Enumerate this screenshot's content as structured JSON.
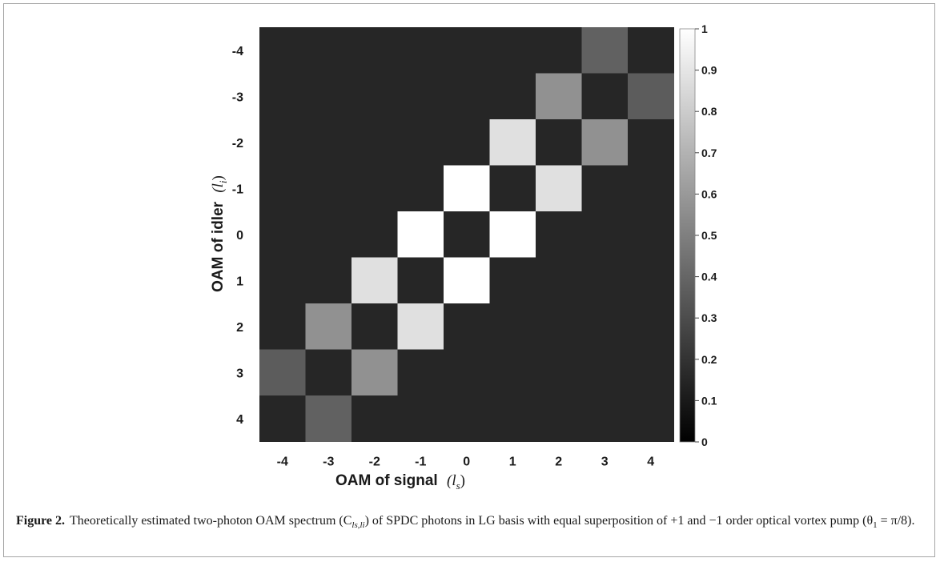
{
  "chart_data": {
    "type": "heatmap",
    "x_label_text": "OAM of signal",
    "x_label_math": "(l",
    "x_label_sub": "s",
    "x_label_close": ")",
    "y_label_text": "OAM of idler",
    "y_label_math": "(l",
    "y_label_sub": "i",
    "y_label_close": ")",
    "x_categories": [
      "-4",
      "-3",
      "-2",
      "-1",
      "0",
      "1",
      "2",
      "3",
      "4"
    ],
    "y_categories": [
      "-4",
      "-3",
      "-2",
      "-1",
      "0",
      "1",
      "2",
      "3",
      "4"
    ],
    "z": [
      [
        0.15,
        0.15,
        0.15,
        0.15,
        0.15,
        0.15,
        0.15,
        0.38,
        0.15
      ],
      [
        0.15,
        0.15,
        0.15,
        0.15,
        0.15,
        0.15,
        0.57,
        0.15,
        0.36
      ],
      [
        0.15,
        0.15,
        0.15,
        0.15,
        0.15,
        0.88,
        0.15,
        0.57,
        0.15
      ],
      [
        0.15,
        0.15,
        0.15,
        0.15,
        1.0,
        0.15,
        0.88,
        0.15,
        0.15
      ],
      [
        0.15,
        0.15,
        0.15,
        1.0,
        0.15,
        1.0,
        0.15,
        0.15,
        0.15
      ],
      [
        0.15,
        0.15,
        0.88,
        0.15,
        1.0,
        0.15,
        0.15,
        0.15,
        0.15
      ],
      [
        0.15,
        0.57,
        0.15,
        0.88,
        0.15,
        0.15,
        0.15,
        0.15,
        0.15
      ],
      [
        0.36,
        0.15,
        0.57,
        0.15,
        0.15,
        0.15,
        0.15,
        0.15,
        0.15
      ],
      [
        0.15,
        0.38,
        0.15,
        0.15,
        0.15,
        0.15,
        0.15,
        0.15,
        0.15
      ]
    ],
    "colorbar": {
      "min": 0,
      "max": 1,
      "ticks": [
        "0",
        "0.1",
        "0.2",
        "0.3",
        "0.4",
        "0.5",
        "0.6",
        "0.7",
        "0.8",
        "0.9",
        "1"
      ],
      "colormap": "gray",
      "low_color": "#000000",
      "high_color": "#ffffff"
    }
  },
  "caption": {
    "label": "Figure 2.",
    "text": "Theoretically estimated two-photon OAM spectrum (C",
    "sub": "ls,li",
    "text_2": ") of SPDC photons in LG basis with equal superposition of +1 and −1 order optical vortex pump (θ",
    "sub_2": "1",
    "text_3": " = π/8)."
  }
}
